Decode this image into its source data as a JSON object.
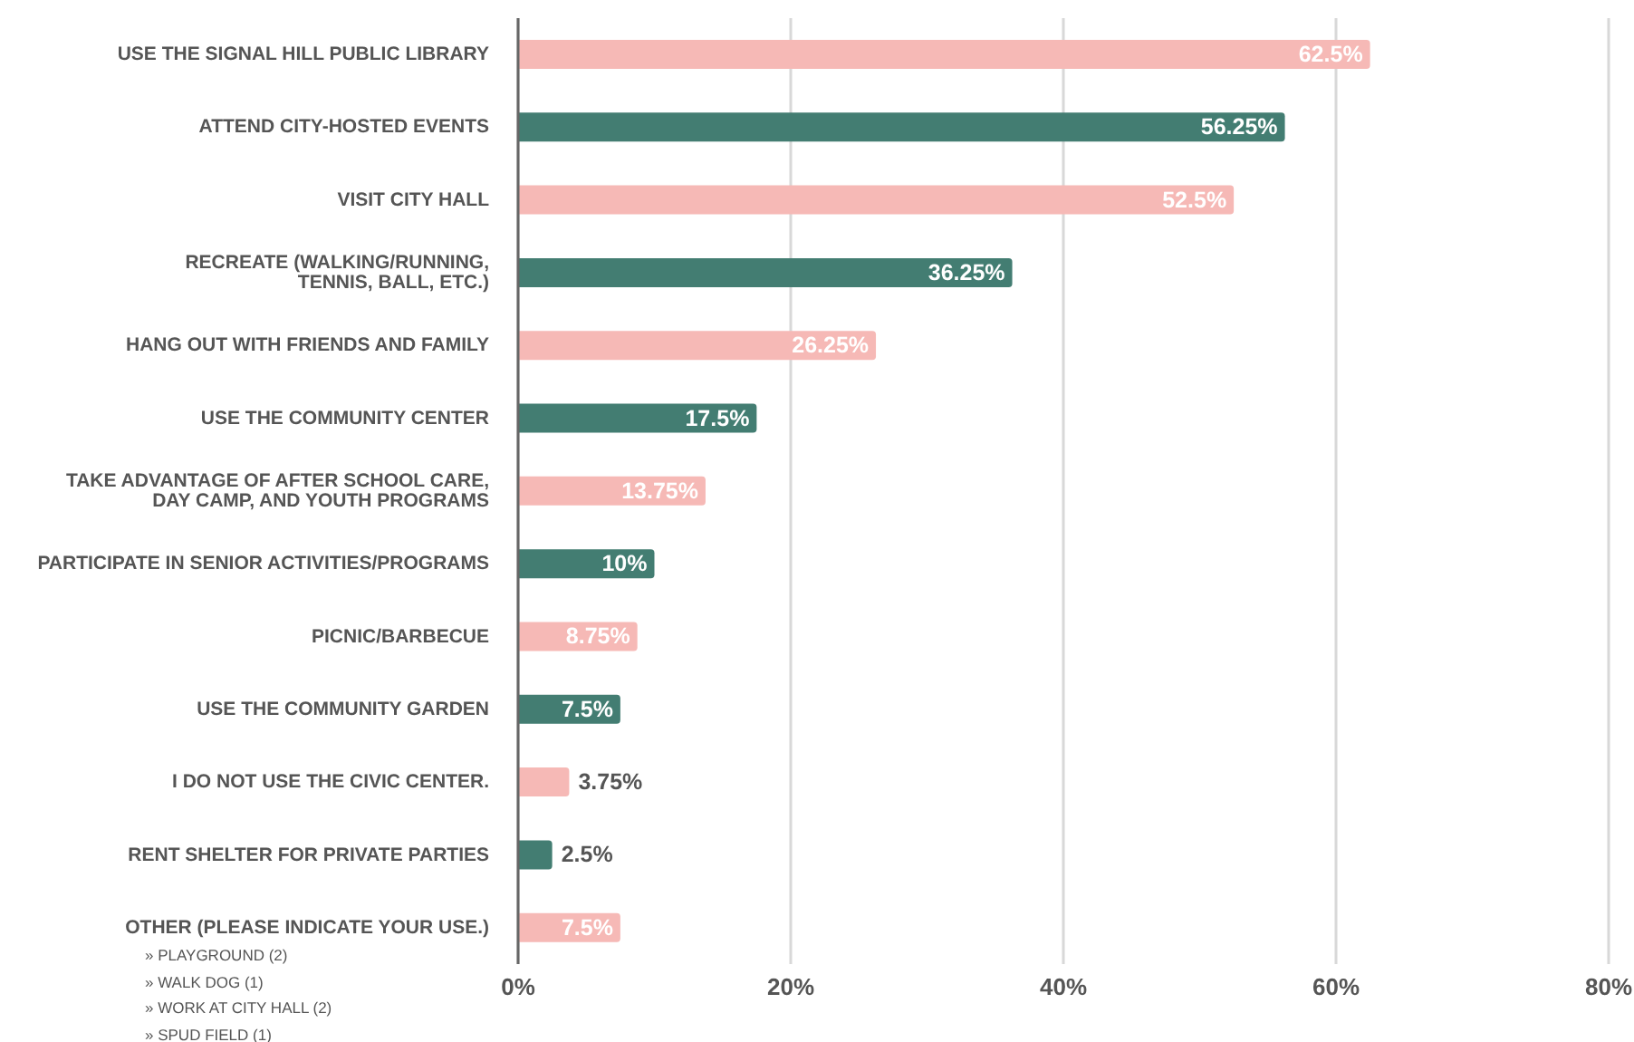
{
  "chart_data": {
    "type": "bar",
    "orientation": "horizontal",
    "categories": [
      "USE THE SIGNAL HILL PUBLIC LIBRARY",
      "ATTEND CITY-HOSTED EVENTS",
      "VISIT CITY HALL",
      "RECREATE (WALKING/RUNNING,\nTENNIS, BALL, ETC.)",
      "HANG OUT WITH FRIENDS AND FAMILY",
      "USE THE COMMUNITY CENTER",
      "TAKE ADVANTAGE OF AFTER SCHOOL CARE,\nDAY CAMP, AND YOUTH PROGRAMS",
      "PARTICIPATE IN SENIOR ACTIVITIES/PROGRAMS",
      "PICNIC/BARBECUE",
      "USE THE COMMUNITY GARDEN",
      "I DO NOT USE THE CIVIC CENTER.",
      "RENT SHELTER FOR PRIVATE PARTIES",
      "OTHER (PLEASE INDICATE YOUR USE.)"
    ],
    "values": [
      62.5,
      56.25,
      52.5,
      36.25,
      26.25,
      17.5,
      13.75,
      10,
      8.75,
      7.5,
      3.75,
      2.5,
      7.5
    ],
    "value_labels": [
      "62.5%",
      "56.25%",
      "52.5%",
      "36.25%",
      "26.25%",
      "17.5%",
      "13.75%",
      "10%",
      "8.75%",
      "7.5%",
      "3.75%",
      "2.5%",
      "7.5%"
    ],
    "colors": [
      "#f6b9b6",
      "#437d72",
      "#f6b9b6",
      "#437d72",
      "#f6b9b6",
      "#437d72",
      "#f6b9b6",
      "#437d72",
      "#f6b9b6",
      "#437d72",
      "#f6b9b6",
      "#437d72",
      "#f6b9b6"
    ],
    "xlim": [
      0,
      80
    ],
    "xticks": [
      {
        "value": 0,
        "label": "0%"
      },
      {
        "value": 20,
        "label": "20%"
      },
      {
        "value": 40,
        "label": "40%"
      },
      {
        "value": 60,
        "label": "60%"
      },
      {
        "value": 80,
        "label": "80%"
      }
    ],
    "grid": "x",
    "annotations": [
      "» PLAYGROUND (2)",
      "» WALK DOG (1)",
      "» WORK AT CITY HALL (2)",
      "» SPUD FIELD (1)"
    ]
  }
}
